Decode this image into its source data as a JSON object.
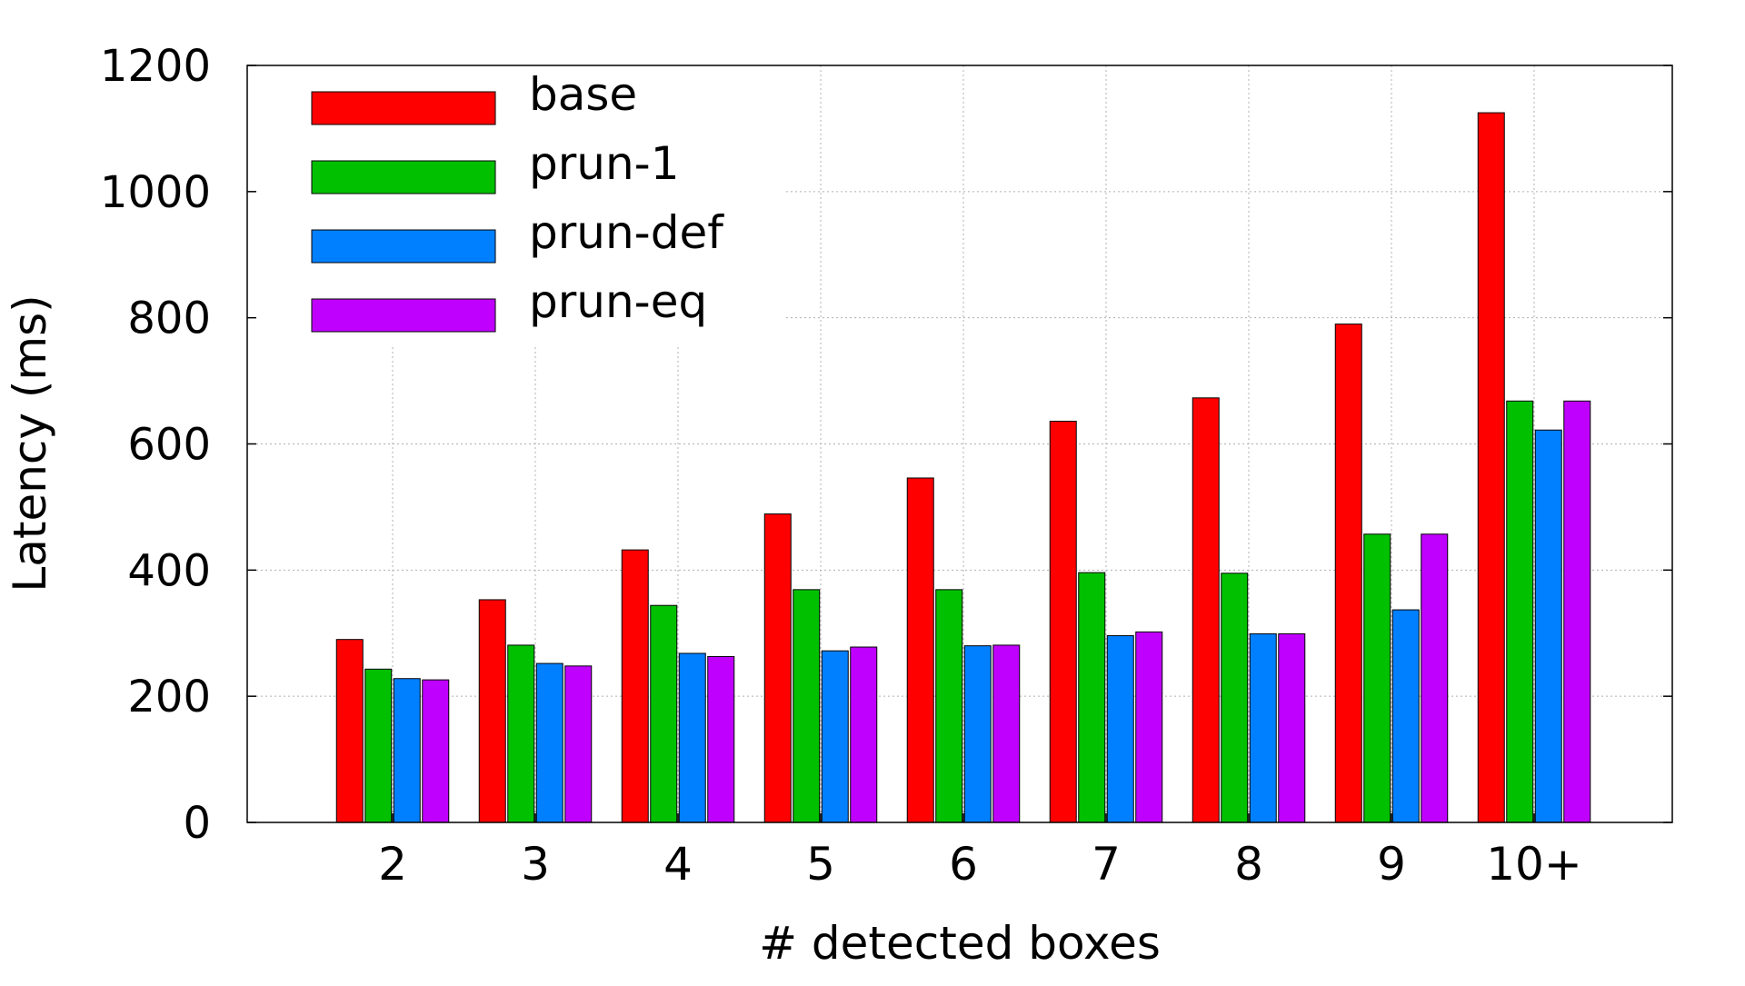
{
  "chart_data": {
    "type": "bar",
    "title": "",
    "xlabel": "# detected boxes",
    "ylabel": "Latency (ms)",
    "categories": [
      "2",
      "3",
      "4",
      "5",
      "6",
      "7",
      "8",
      "9",
      "10+"
    ],
    "ylim": [
      0,
      1200
    ],
    "yticks": [
      "0",
      "200",
      "400",
      "600",
      "800",
      "1000",
      "1200"
    ],
    "grid": true,
    "legend_position": "top-left",
    "series": [
      {
        "name": "base",
        "color": "#ff0000",
        "values": [
          290,
          353,
          432,
          489,
          546,
          636,
          673,
          790,
          1125
        ]
      },
      {
        "name": "prun-1",
        "color": "#00c000",
        "values": [
          243,
          281,
          344,
          369,
          369,
          396,
          395,
          457,
          668
        ]
      },
      {
        "name": "prun-def",
        "color": "#0080ff",
        "values": [
          228,
          252,
          268,
          272,
          280,
          296,
          299,
          337,
          622
        ]
      },
      {
        "name": "prun-eq",
        "color": "#c000ff",
        "values": [
          226,
          248,
          263,
          278,
          281,
          302,
          299,
          457,
          668
        ]
      }
    ]
  }
}
